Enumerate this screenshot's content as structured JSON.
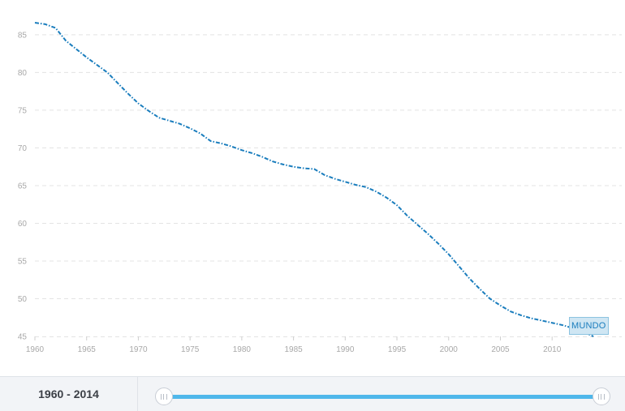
{
  "chart_data": {
    "type": "line",
    "title": "",
    "xlabel": "",
    "ylabel": "",
    "x_ticks": [
      1960,
      1965,
      1970,
      1975,
      1980,
      1985,
      1990,
      1995,
      2000,
      2005,
      2010
    ],
    "y_ticks": [
      45,
      50,
      55,
      60,
      65,
      70,
      75,
      80,
      85
    ],
    "xlim": [
      1960,
      2016
    ],
    "ylim": [
      45,
      86.5
    ],
    "grid": true,
    "series": [
      {
        "name": "MUNDO",
        "color": "#1a7dbd",
        "x": [
          1960,
          1961,
          1962,
          1963,
          1964,
          1965,
          1966,
          1967,
          1968,
          1969,
          1970,
          1971,
          1972,
          1973,
          1974,
          1975,
          1976,
          1977,
          1978,
          1979,
          1980,
          1981,
          1982,
          1983,
          1984,
          1985,
          1986,
          1987,
          1988,
          1989,
          1990,
          1991,
          1992,
          1993,
          1994,
          1995,
          1996,
          1997,
          1998,
          1999,
          2000,
          2001,
          2002,
          2003,
          2004,
          2005,
          2006,
          2007,
          2008,
          2009,
          2010,
          2011,
          2012,
          2013,
          2014
        ],
        "values": [
          86.6,
          86.4,
          85.9,
          84.2,
          83.1,
          82.0,
          81.0,
          80.0,
          78.6,
          77.2,
          75.9,
          74.9,
          74.0,
          73.6,
          73.2,
          72.6,
          71.9,
          70.9,
          70.6,
          70.2,
          69.7,
          69.3,
          68.8,
          68.2,
          67.8,
          67.5,
          67.3,
          67.2,
          66.4,
          65.9,
          65.5,
          65.1,
          64.8,
          64.2,
          63.4,
          62.4,
          61.0,
          59.8,
          58.6,
          57.3,
          55.9,
          54.3,
          52.7,
          51.3,
          50.0,
          49.1,
          48.3,
          47.8,
          47.4,
          47.1,
          46.8,
          46.5,
          46.1,
          45.6,
          45.0
        ]
      }
    ]
  },
  "footer": {
    "range_label": "1960 - 2014",
    "slider_color": "#4fb7ea"
  }
}
